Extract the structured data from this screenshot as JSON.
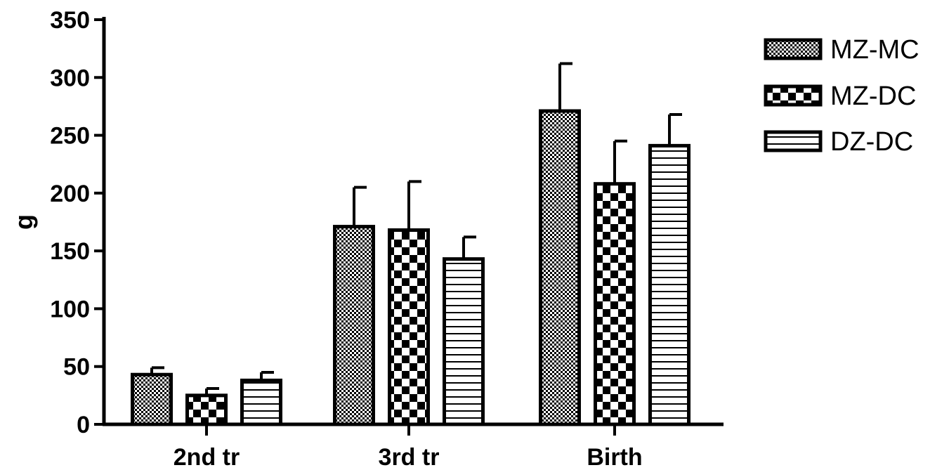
{
  "chart_data": {
    "type": "bar",
    "title": "",
    "xlabel": "",
    "ylabel": "g",
    "ylim": [
      0,
      350
    ],
    "yticks": [
      0,
      50,
      100,
      150,
      200,
      250,
      300,
      350
    ],
    "categories": [
      "2nd tr",
      "3rd tr",
      "Birth"
    ],
    "series": [
      {
        "name": "MZ-MC",
        "pattern": "fine-checker",
        "values": [
          43,
          171,
          271
        ],
        "errors": [
          6,
          34,
          41
        ]
      },
      {
        "name": "MZ-DC",
        "pattern": "coarse-checker",
        "values": [
          25,
          168,
          208
        ],
        "errors": [
          6,
          42,
          37
        ]
      },
      {
        "name": "DZ-DC",
        "pattern": "horizontal-lines",
        "values": [
          38,
          143,
          241
        ],
        "errors": [
          7,
          19,
          27
        ]
      }
    ],
    "legend_position": "top-right",
    "grid": false,
    "colors": {
      "ink": "#000000",
      "background": "#ffffff"
    }
  }
}
